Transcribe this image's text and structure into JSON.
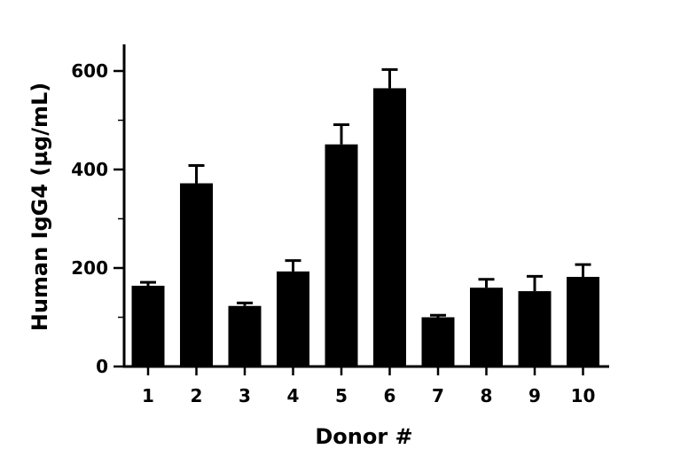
{
  "chart_data": {
    "type": "bar",
    "title": "",
    "xlabel": "Donor #",
    "ylabel": "Human IgG4 (µg/mL)",
    "categories": [
      "1",
      "2",
      "3",
      "4",
      "5",
      "6",
      "7",
      "8",
      "9",
      "10"
    ],
    "values": [
      164,
      372,
      123,
      193,
      451,
      565,
      100,
      160,
      153,
      182
    ],
    "errors": [
      7,
      36,
      6,
      22,
      40,
      38,
      4,
      17,
      30,
      25
    ],
    "ylim": [
      0,
      650
    ],
    "yticks": [
      0,
      200,
      400,
      600
    ],
    "yticks_minor": [
      100,
      300,
      500
    ],
    "bar_color": "#000000",
    "grid": false,
    "legend": "none"
  }
}
